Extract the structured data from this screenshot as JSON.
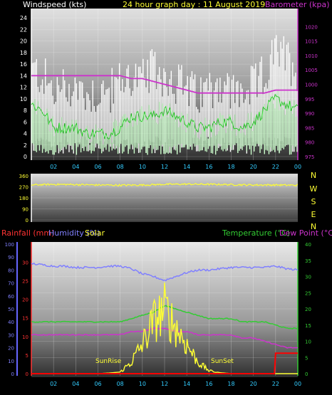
{
  "header": {
    "left_title": "Windspeed (kts)",
    "center_title": "24 hour graph day : 11 August 2019",
    "right_title": "Barometer (kpa)"
  },
  "bottom_header": {
    "rainfall": "Rainfall (mm)",
    "humidity": "Humidity (%)",
    "solar": "Solar",
    "temperature": "Temperature (°C)",
    "dewpoint": "Dew Point (°C)"
  },
  "annotations": {
    "sunrise": "SunRise",
    "sunset": "SunSet"
  },
  "colors": {
    "wind_gust": "#ffffff",
    "wind_avg": "#ccffcc",
    "wind_avg_line": "#33cc33",
    "barometer": "#cc33cc",
    "direction": "#ffff33",
    "humidity": "#8080ff",
    "temperature": "#33cc33",
    "dewpoint": "#cc33cc",
    "solar": "#ffff33",
    "rain": "#ff0000",
    "rain_axis": "#ff3333",
    "humidity_axis": "#6666ff",
    "temp_axis": "#33cc33"
  },
  "chart_data": [
    {
      "type": "area",
      "name": "wind-barometer",
      "title": "24 hour graph day : 11 August 2019",
      "ylabel": "Windspeed (kts)",
      "y2label": "Barometer (kpa)",
      "ylim": [
        0,
        25
      ],
      "y2lim": [
        975,
        1025
      ],
      "y_ticks": [
        0,
        2,
        4,
        6,
        8,
        10,
        12,
        14,
        16,
        18,
        20,
        22,
        24
      ],
      "y2_ticks": [
        975,
        980,
        985,
        990,
        995,
        1000,
        1005,
        1010,
        1015,
        1020
      ],
      "x_ticks": [
        "02",
        "04",
        "06",
        "08",
        "10",
        "12",
        "14",
        "16",
        "18",
        "20",
        "22",
        "00"
      ],
      "hours": [
        0,
        1,
        2,
        3,
        4,
        5,
        6,
        7,
        8,
        9,
        10,
        11,
        12,
        13,
        14,
        15,
        16,
        17,
        18,
        19,
        20,
        21,
        22,
        23,
        24
      ],
      "series": [
        {
          "values": [
            15,
            14,
            11,
            12,
            12,
            11,
            11,
            11,
            13,
            14,
            13,
            15,
            14,
            13,
            12,
            10,
            12,
            13,
            11,
            11,
            12,
            14,
            18,
            17,
            15
          ]
        },
        {
          "values": [
            9,
            8,
            5,
            5,
            5,
            4,
            4,
            4,
            5,
            7,
            7,
            7,
            8,
            7,
            6,
            5,
            5,
            6,
            6,
            5,
            6,
            8,
            10,
            9,
            8
          ]
        },
        {
          "values": [
            1003,
            1003,
            1003,
            1003,
            1003,
            1003,
            1003,
            1003,
            1003,
            1002,
            1002,
            1001,
            1000,
            999,
            998,
            997,
            997,
            997,
            997,
            997,
            997,
            997,
            998,
            998,
            998
          ]
        }
      ]
    },
    {
      "type": "line",
      "name": "wind-direction",
      "ylim": [
        0,
        360
      ],
      "y_ticks": [
        0,
        90,
        180,
        270,
        360
      ],
      "compass": [
        "N",
        "W",
        "S",
        "E",
        "N"
      ],
      "hours": [
        0,
        2,
        4,
        6,
        8,
        10,
        12,
        14,
        16,
        18,
        20,
        22,
        24
      ],
      "values": [
        285,
        290,
        288,
        285,
        283,
        285,
        290,
        292,
        290,
        288,
        285,
        285,
        283
      ]
    },
    {
      "type": "line",
      "name": "temp-humidity-solar-rain",
      "y_humidity_ticks": [
        0,
        10,
        20,
        30,
        40,
        50,
        60,
        70,
        80,
        90,
        100
      ],
      "y_rain_ticks": [
        0,
        5,
        10,
        15,
        20,
        25,
        30
      ],
      "y_temp_ticks": [
        0,
        5,
        10,
        15,
        20,
        25,
        30,
        35,
        40
      ],
      "x_ticks": [
        "02",
        "04",
        "06",
        "08",
        "10",
        "12",
        "14",
        "16",
        "18",
        "20",
        "22",
        "00"
      ],
      "hours": [
        0,
        1,
        2,
        3,
        4,
        5,
        6,
        7,
        8,
        9,
        10,
        11,
        12,
        13,
        14,
        15,
        16,
        17,
        18,
        19,
        20,
        21,
        22,
        23,
        24
      ],
      "series": [
        {
          "values": [
            85,
            84,
            83,
            83,
            82,
            82,
            82,
            83,
            83,
            81,
            77,
            75,
            72,
            75,
            78,
            80,
            80,
            81,
            82,
            82,
            82,
            82,
            83,
            81,
            80
          ]
        },
        {
          "values": [
            16,
            16,
            16,
            16,
            16,
            16,
            16,
            16,
            16,
            17,
            18,
            19,
            21,
            20,
            19,
            18,
            17,
            17,
            17,
            16,
            16,
            16,
            15,
            14,
            14
          ]
        },
        {
          "values": [
            12,
            12,
            12,
            12,
            12,
            12,
            12,
            12,
            12,
            13,
            13,
            14,
            14,
            13,
            13,
            12,
            12,
            12,
            12,
            11,
            11,
            10,
            9,
            8,
            8
          ]
        },
        {
          "values": [
            0,
            0,
            0,
            0,
            0,
            0,
            0,
            0.2,
            0.5,
            4,
            10,
            18,
            22,
            16,
            10,
            4,
            1,
            0.3,
            0,
            0,
            0,
            0,
            0,
            0,
            0
          ]
        },
        {
          "values": [
            0,
            0,
            0,
            0,
            0,
            0,
            0,
            0,
            0,
            0,
            0,
            0,
            0,
            0,
            0,
            0,
            0,
            0,
            0,
            0,
            0,
            0,
            5.5,
            5.5,
            5.5
          ]
        }
      ],
      "series_note": "order: humidity, temperature, dewpoint, solar, rain"
    }
  ]
}
